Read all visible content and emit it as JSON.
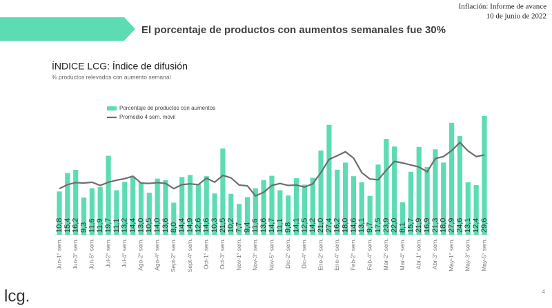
{
  "header": {
    "title": "El porcentaje de productos con aumentos semanales fue 30%",
    "report": "Inflación: Informe de avance",
    "date": "10 de junio de 2022"
  },
  "footer": {
    "logo": "lcg.",
    "page": "4"
  },
  "chart_data": {
    "type": "bar",
    "title": "ÍNDICE LCG: Índice de difusión",
    "subtitle": "% productos relevados con aumento semanal",
    "categories": [
      "Jun-1° sem.",
      null,
      "Jun-3° sem.",
      null,
      "Jun-5° sem.",
      null,
      "Jul-2° sem.",
      null,
      "Jul-4° sem.",
      null,
      "Ago-2° sem.",
      null,
      "Ago-4° sem.",
      null,
      "Sept-2° sem.",
      null,
      "Sept-4° sem.",
      null,
      "Oct-1° sem.",
      null,
      "Oct-3° sem.",
      null,
      "Nov-1° sem.",
      null,
      "Nov-3° sem.",
      null,
      "Nov-5° sem.",
      null,
      "Dic-2° sem.",
      null,
      "Dic-4° sem.",
      null,
      "Ene-2° sem.",
      null,
      "Ene-4° sem.",
      null,
      "Feb-2° sem.",
      null,
      "Feb-4° sem.",
      null,
      "Mar-2° sem.",
      null,
      "Mar-4° sem.",
      null,
      "Abr-1° sem.",
      null,
      "Abr-3° sem.",
      null,
      "May-1° sem.",
      null,
      "May-3° sem.",
      null,
      "May-5° sem."
    ],
    "series": [
      {
        "name": "Porcentaje de productos con aumentos",
        "color": "#5ddcb4",
        "type": "bar",
        "values": [
          10.8,
          15.4,
          16.2,
          9.3,
          11.6,
          11.9,
          19.7,
          11.1,
          13.2,
          14.4,
          13.0,
          10.5,
          14.0,
          13.6,
          8.0,
          14.4,
          14.9,
          12.6,
          14.6,
          10.3,
          21.5,
          10.2,
          7.7,
          9.4,
          11.6,
          13.6,
          14.7,
          11.1,
          9.8,
          14.1,
          12.5,
          14.2,
          21.0,
          27.4,
          16.2,
          18.0,
          14.6,
          13.1,
          9.7,
          17.5,
          23.9,
          22.0,
          8.1,
          15.7,
          21.9,
          16.9,
          21.3,
          18.0,
          27.9,
          24.6,
          13.1,
          12.4,
          29.6
        ],
        "value_labels": [
          "10,8",
          "15,4",
          "16,2",
          "9,3",
          "11,6",
          "11,9",
          "19,7",
          "11,1",
          "13,2",
          "14,4",
          "13,0",
          "10,5",
          "14,0",
          "13,6",
          "8,0",
          "14,4",
          "14,9",
          "12,6",
          "14,6",
          "10,3",
          "21,5",
          "10,2",
          "7,7",
          "9,4",
          "11,6",
          "13,6",
          "14,7",
          "11,1",
          "9,8",
          "14,1",
          "12,5",
          "14,2",
          "21,0",
          "27,4",
          "16,2",
          "18,0",
          "14,6",
          "13,1",
          "9,7",
          "17,5",
          "23,9",
          "22,0",
          "8,1",
          "15,7",
          "21,9",
          "16,9",
          "21,3",
          "18,0",
          "27,9",
          "24,6",
          "13,1",
          "12,4",
          "29,6"
        ]
      },
      {
        "name": "Promedio 4 sem. movil",
        "color": "#6d6d6d",
        "type": "line",
        "values": [
          11.5,
          12.5,
          13.0,
          12.9,
          13.1,
          12.3,
          13.1,
          13.6,
          14.0,
          14.6,
          12.9,
          12.8,
          13.0,
          12.8,
          11.5,
          12.5,
          12.7,
          12.5,
          14.1,
          13.1,
          14.8,
          14.2,
          12.4,
          12.2,
          9.7,
          10.6,
          12.3,
          12.8,
          12.3,
          12.4,
          11.9,
          12.7,
          15.5,
          18.8,
          19.7,
          20.7,
          19.1,
          15.5,
          13.9,
          13.7,
          16.1,
          18.3,
          17.9,
          17.4,
          16.9,
          15.7,
          19.0,
          19.5,
          21.0,
          23.0,
          20.9,
          19.5,
          19.9
        ]
      }
    ]
  }
}
